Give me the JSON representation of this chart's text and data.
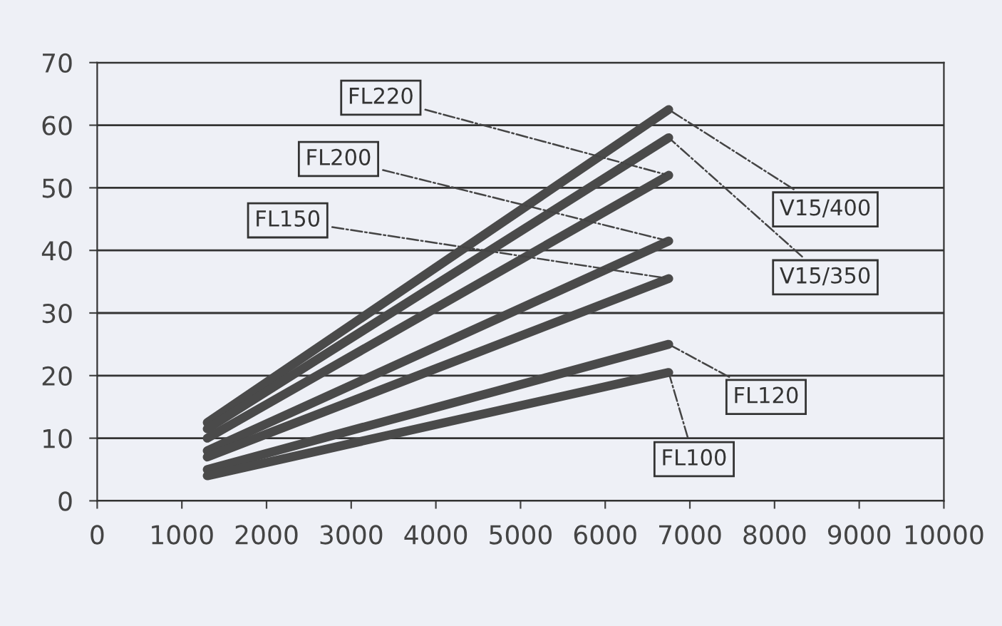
{
  "chart_data": {
    "type": "line",
    "x": [
      1300,
      6750
    ],
    "series": [
      {
        "name": "V15/400",
        "color": "#4a4a4a",
        "values": [
          12.5,
          62.5
        ]
      },
      {
        "name": "V15/350",
        "color": "#4a4a4a",
        "values": [
          11.5,
          58
        ]
      },
      {
        "name": "FL220",
        "color": "#4a4a4a",
        "values": [
          10,
          52
        ]
      },
      {
        "name": "FL200",
        "color": "#4a4a4a",
        "values": [
          8,
          41.5
        ]
      },
      {
        "name": "FL150",
        "color": "#4a4a4a",
        "values": [
          7,
          35.5
        ]
      },
      {
        "name": "FL120",
        "color": "#4a4a4a",
        "values": [
          5,
          25
        ]
      },
      {
        "name": "FL100",
        "color": "#4a4a4a",
        "values": [
          4,
          20.5
        ]
      }
    ],
    "xlim": [
      0,
      10000
    ],
    "xticks": [
      0,
      1000,
      2000,
      3000,
      4000,
      5000,
      6000,
      7000,
      8000,
      9000,
      10000
    ],
    "ylim": [
      0,
      70
    ],
    "yticks": [
      0,
      10,
      20,
      30,
      40,
      50,
      60,
      70
    ],
    "grid": "y",
    "legend": false,
    "marker": "none",
    "line_style": "solid"
  }
}
